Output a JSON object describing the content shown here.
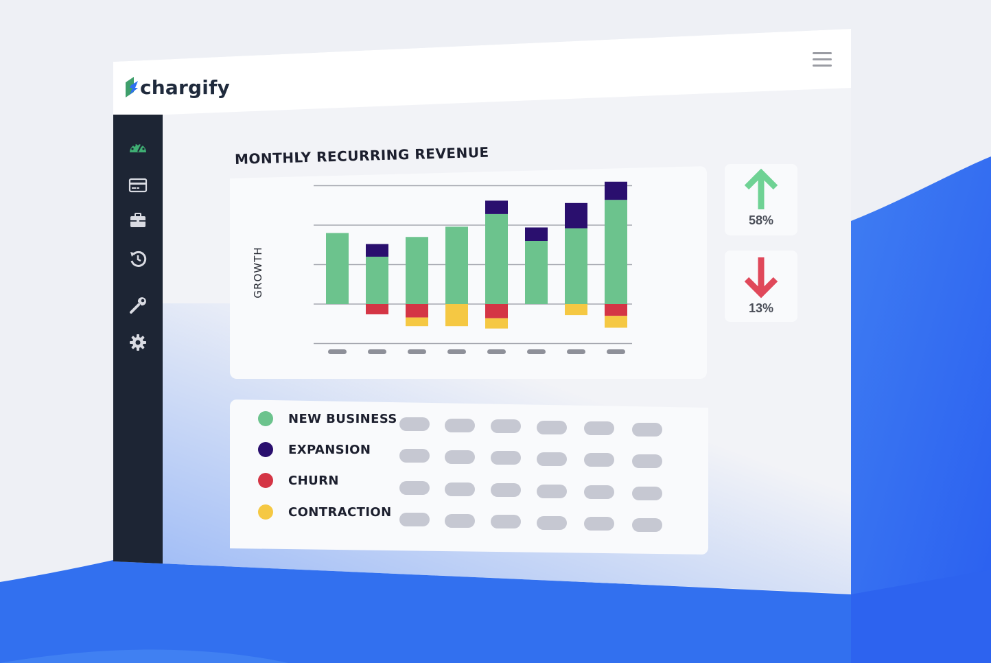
{
  "app": {
    "brand": "chargify",
    "menu_icon": "hamburger-menu-icon"
  },
  "sidebar": {
    "items": [
      {
        "icon": "dashboard-gauge-icon"
      },
      {
        "icon": "credit-card-icon"
      },
      {
        "icon": "briefcase-icon"
      },
      {
        "icon": "history-icon"
      },
      {
        "icon": "wrench-icon"
      },
      {
        "icon": "gear-icon"
      }
    ]
  },
  "colors": {
    "new_business": "#6cc38d",
    "expansion": "#2a0f6e",
    "churn": "#d43545",
    "contraction": "#f5c843",
    "sidebar_bg": "#1d2534",
    "accent_blue": "#2f67f0"
  },
  "chart_data": {
    "type": "bar",
    "title": "MONTHLY RECURRING REVENUE",
    "ylabel": "GROWTH",
    "xlabel": "",
    "categories": [
      "",
      "",
      "",
      "",
      "",
      "",
      "",
      ""
    ],
    "series": [
      {
        "name": "NEW BUSINESS",
        "values": [
          9.0,
          6.0,
          8.5,
          9.8,
          11.4,
          8.0,
          9.6,
          13.2
        ]
      },
      {
        "name": "EXPANSION",
        "values": [
          0,
          1.6,
          0,
          0,
          1.7,
          1.7,
          3.2,
          2.3
        ]
      },
      {
        "name": "CHURN",
        "values": [
          0,
          -1.3,
          -1.7,
          0,
          -1.8,
          0,
          0,
          -1.5
        ]
      },
      {
        "name": "CONTRACTION",
        "values": [
          0,
          0,
          -1.1,
          -2.8,
          -1.3,
          0,
          -1.4,
          -1.5
        ]
      }
    ],
    "ylim": [
      -5,
      15
    ],
    "grid": true,
    "legend": "bottom"
  },
  "stats": [
    {
      "direction": "up",
      "value": "58%",
      "icon": "arrow-up-icon"
    },
    {
      "direction": "down",
      "value": "13%",
      "icon": "arrow-down-icon"
    }
  ],
  "legend": [
    {
      "label": "NEW BUSINESS"
    },
    {
      "label": "EXPANSION"
    },
    {
      "label": "CHURN"
    },
    {
      "label": "CONTRACTION"
    }
  ]
}
